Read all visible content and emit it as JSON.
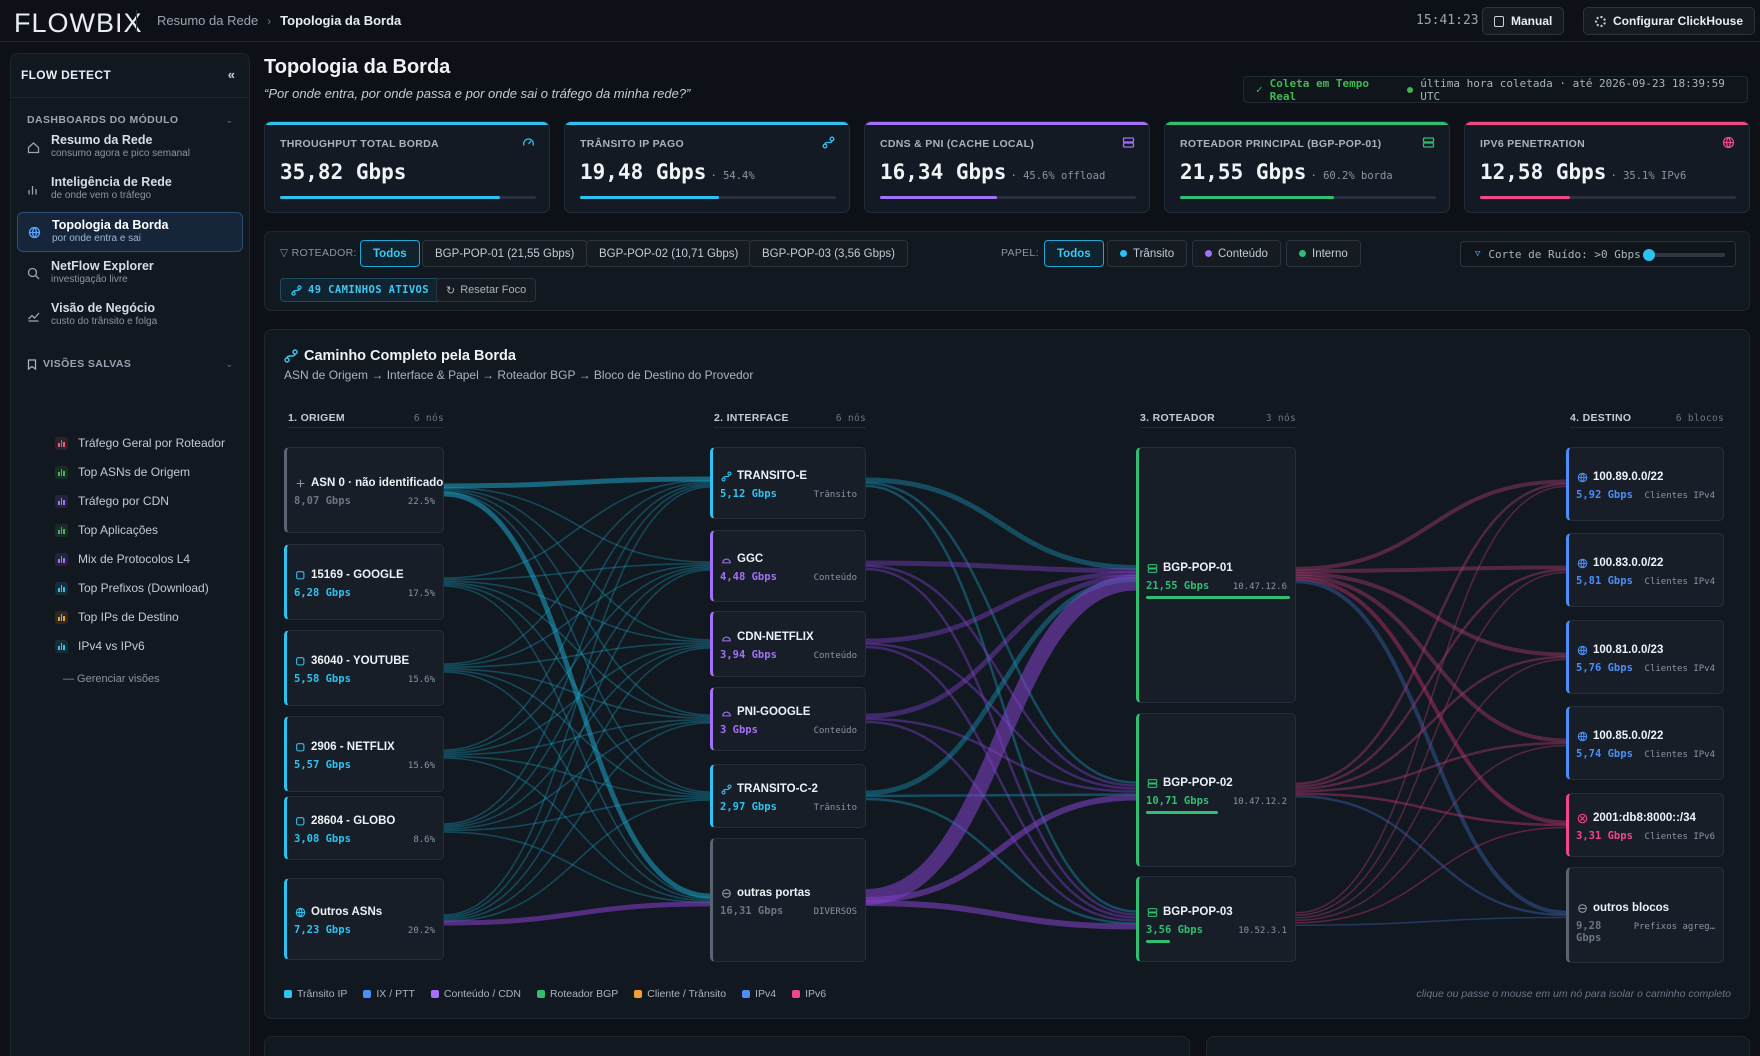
{
  "topbar": {
    "logo": "FLOWBIX",
    "breadcrumb": [
      "Resumo da Rede",
      "Topologia da Borda"
    ],
    "clock": "15:41:23",
    "manual_label": "Manual",
    "config_label": "Configurar ClickHouse"
  },
  "sidebar": {
    "title": "FLOW DETECT",
    "collapse": "«",
    "section_dashboards": "DASHBOARDS DO MÓDULO",
    "nav": [
      {
        "label": "Resumo da Rede",
        "sub": "consumo agora e pico semanal",
        "icon": "home-icon"
      },
      {
        "label": "Inteligência de Rede",
        "sub": "de onde vem o tráfego",
        "icon": "bar-chart-icon"
      },
      {
        "label": "Topologia da Borda",
        "sub": "por onde entra e sai",
        "icon": "globe-icon"
      },
      {
        "label": "NetFlow Explorer",
        "sub": "investigação livre",
        "icon": "search-icon"
      },
      {
        "label": "Visão de Negócio",
        "sub": "custo do trânsito e folga",
        "icon": "trend-icon"
      }
    ],
    "section_views": "VISÕES SALVAS",
    "views": [
      {
        "label": "Tráfego Geral por Roteador",
        "color": "#f0597a"
      },
      {
        "label": "Top ASNs de Origem",
        "color": "#3fb950"
      },
      {
        "label": "Tráfego por CDN",
        "color": "#a371f7"
      },
      {
        "label": "Top Aplicações",
        "color": "#3fb950"
      },
      {
        "label": "Mix de Protocolos L4",
        "color": "#a371f7"
      },
      {
        "label": "Top Prefixos (Download)",
        "color": "#2ec2f2"
      },
      {
        "label": "Top IPs de Destino",
        "color": "#f0a030"
      },
      {
        "label": "IPv4 vs IPv6",
        "color": "#2ec2f2"
      }
    ],
    "manage": "— Gerenciar visões"
  },
  "header": {
    "title": "Topologia da Borda",
    "subtitle": "“Por onde entra, por onde passa e por onde sai o tráfego da minha rede?”",
    "live_check": "✓",
    "live_label": "Coleta em Tempo Real",
    "live_text": "última hora coletada · até 2026-09-23 18:39:59 UTC"
  },
  "kpis": [
    {
      "label": "THROUGHPUT TOTAL BORDA",
      "value": "35,82 Gbps",
      "extra": "",
      "color": "#2ec2f2",
      "fill": 0.86,
      "icon": "gauge-icon"
    },
    {
      "label": "TRÂNSITO IP PAGO",
      "value": "19,48 Gbps",
      "extra": "· 54.4%",
      "color": "#2ec2f2",
      "fill": 0.544,
      "icon": "route-icon"
    },
    {
      "label": "CDNS & PNI (CACHE LOCAL)",
      "value": "16,34 Gbps",
      "extra": "· 45.6% offload",
      "color": "#a371f7",
      "fill": 0.456,
      "icon": "server-icon"
    },
    {
      "label": "ROTEADOR PRINCIPAL (BGP-POP-01)",
      "value": "21,55 Gbps",
      "extra": "· 60.2% borda",
      "color": "#2fbf71",
      "fill": 0.602,
      "icon": "server-icon"
    },
    {
      "label": "IPV6 PENETRATION",
      "value": "12,58 Gbps",
      "extra": "· 35.1% IPv6",
      "color": "#f0478a",
      "fill": 0.351,
      "icon": "globe-icon"
    }
  ],
  "filters": {
    "router_label": "ROTEADOR:",
    "routers": [
      "Todos",
      "BGP-POP-01 (21,55 Gbps)",
      "BGP-POP-02 (10,71 Gbps)",
      "BGP-POP-03 (3,56 Gbps)"
    ],
    "role_label": "PAPEL:",
    "roles": [
      {
        "label": "Todos",
        "color": ""
      },
      {
        "label": "Trânsito",
        "color": "#2ec2f2"
      },
      {
        "label": "Conteúdo",
        "color": "#a371f7"
      },
      {
        "label": "Interno",
        "color": "#2fbf71"
      }
    ],
    "noise_label": "Corte de Ruído: >0 Gbps",
    "noise_value": 0,
    "paths_badge": "49 CAMINHOS ATIVOS",
    "reset_label": "Resetar Foco"
  },
  "sankey": {
    "title": "Caminho Completo pela Borda",
    "subtitle": "ASN de Origem → Interface & Papel → Roteador BGP → Bloco de Destino do Provedor",
    "columns": [
      {
        "title": "1. ORIGEM",
        "count": "6 nós"
      },
      {
        "title": "2. INTERFACE",
        "count": "6 nós"
      },
      {
        "title": "3. ROTEADOR",
        "count": "3 nós"
      },
      {
        "title": "4. DESTINO",
        "count": "6 blocos"
      }
    ],
    "origins": [
      {
        "name": "ASN 0 · não identificado",
        "value": "8,07 Gbps",
        "pct": "22.5%",
        "color": "#5a6472",
        "icon": "plus-icon",
        "dim": true
      },
      {
        "name": "15169 - GOOGLE",
        "value": "6,28 Gbps",
        "pct": "17.5%",
        "color": "#2ec2f2",
        "icon": "square-icon"
      },
      {
        "name": "36040 - YOUTUBE",
        "value": "5,58 Gbps",
        "pct": "15.6%",
        "color": "#2ec2f2",
        "icon": "square-icon"
      },
      {
        "name": "2906 - NETFLIX",
        "value": "5,57 Gbps",
        "pct": "15.6%",
        "color": "#2ec2f2",
        "icon": "square-icon"
      },
      {
        "name": "28604 - GLOBO",
        "value": "3,08 Gbps",
        "pct": "8.6%",
        "color": "#2ec2f2",
        "icon": "square-icon"
      },
      {
        "name": "Outros ASNs",
        "value": "7,23 Gbps",
        "pct": "20.2%",
        "color": "#2ec2f2",
        "icon": "globe-icon"
      }
    ],
    "interfaces": [
      {
        "name": "TRANSITO-E",
        "value": "5,12 Gbps",
        "role": "Trânsito",
        "color": "#2ec2f2",
        "icon": "route-icon"
      },
      {
        "name": "GGC",
        "value": "4,48 Gbps",
        "role": "Conteúdo",
        "color": "#a371f7",
        "icon": "cloud-icon"
      },
      {
        "name": "CDN-NETFLIX",
        "value": "3,94 Gbps",
        "role": "Conteúdo",
        "color": "#a371f7",
        "icon": "cloud-icon"
      },
      {
        "name": "PNI-GOOGLE",
        "value": "3 Gbps",
        "role": "Conteúdo",
        "color": "#a371f7",
        "icon": "cloud-icon"
      },
      {
        "name": "TRANSITO-C-2",
        "value": "2,97 Gbps",
        "role": "Trânsito",
        "color": "#2ec2f2",
        "icon": "route-icon"
      },
      {
        "name": "outras portas",
        "value": "16,31 Gbps",
        "role": "DIVERSOS",
        "color": "#5a6472",
        "icon": "circle-icon",
        "dim": true
      }
    ],
    "routers": [
      {
        "name": "BGP-POP-01",
        "value": "21,55 Gbps",
        "ip": "10.47.12.6",
        "color": "#2fbf71",
        "share": 1.0
      },
      {
        "name": "BGP-POP-02",
        "value": "10,71 Gbps",
        "ip": "10.47.12.2",
        "color": "#2fbf71",
        "share": 0.5
      },
      {
        "name": "BGP-POP-03",
        "value": "3,56 Gbps",
        "ip": "10.52.3.1",
        "color": "#2fbf71",
        "share": 0.17
      }
    ],
    "destinations": [
      {
        "name": "100.89.0.0/22",
        "value": "5,92 Gbps",
        "meta": "Clientes IPv4",
        "color": "#4c8df6",
        "icon": "globe-icon"
      },
      {
        "name": "100.83.0.0/22",
        "value": "5,81 Gbps",
        "meta": "Clientes IPv4",
        "color": "#4c8df6",
        "icon": "globe-icon"
      },
      {
        "name": "100.81.0.0/23",
        "value": "5,76 Gbps",
        "meta": "Clientes IPv4",
        "color": "#4c8df6",
        "icon": "globe-icon"
      },
      {
        "name": "100.85.0.0/22",
        "value": "5,74 Gbps",
        "meta": "Clientes IPv4",
        "color": "#4c8df6",
        "icon": "globe-icon"
      },
      {
        "name": "2001:db8:8000::/34",
        "value": "3,31 Gbps",
        "meta": "Clientes IPv6",
        "color": "#f0478a",
        "icon": "globe-x-icon"
      },
      {
        "name": "outros blocos",
        "value": "9,28 Gbps",
        "meta": "Prefixos agreg…",
        "color": "#5a6472",
        "icon": "circle-icon",
        "dim": true
      }
    ],
    "legend": [
      {
        "label": "Trânsito IP",
        "color": "#2ec2f2"
      },
      {
        "label": "IX / PTT",
        "color": "#4c8df6"
      },
      {
        "label": "Conteúdo / CDN",
        "color": "#a371f7"
      },
      {
        "label": "Roteador BGP",
        "color": "#2fbf71"
      },
      {
        "label": "Cliente / Trânsito",
        "color": "#f0a030"
      },
      {
        "label": "IPv4",
        "color": "#4c8df6"
      },
      {
        "label": "IPv6",
        "color": "#f0478a"
      }
    ],
    "hint": "clique ou passe o mouse em um nó para isolar o caminho completo"
  }
}
